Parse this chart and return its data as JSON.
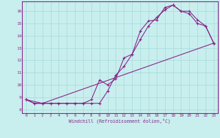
{
  "xlabel": "Windchill (Refroidissement éolien,°C)",
  "background_color": "#c8eeee",
  "grid_color": "#aadddd",
  "line_color": "#882288",
  "xlim": [
    -0.5,
    23.5
  ],
  "ylim": [
    7.7,
    16.8
  ],
  "xticks": [
    0,
    1,
    2,
    3,
    4,
    5,
    6,
    7,
    8,
    9,
    10,
    11,
    12,
    13,
    14,
    15,
    16,
    17,
    18,
    19,
    20,
    21,
    22,
    23
  ],
  "yticks": [
    8,
    9,
    10,
    11,
    12,
    13,
    14,
    15,
    16
  ],
  "line1_x": [
    0,
    1,
    2,
    3,
    4,
    5,
    6,
    7,
    8,
    9,
    10,
    11,
    12,
    13,
    14,
    15,
    16,
    17,
    18,
    19,
    20,
    21,
    22,
    23
  ],
  "line1_y": [
    8.8,
    8.5,
    8.5,
    8.5,
    8.5,
    8.5,
    8.5,
    8.5,
    8.8,
    10.4,
    10.0,
    10.5,
    12.2,
    12.5,
    14.4,
    15.2,
    15.3,
    16.3,
    16.5,
    16.0,
    16.0,
    15.3,
    14.8,
    13.4
  ],
  "line2_x": [
    0,
    1,
    2,
    3,
    4,
    5,
    6,
    7,
    8,
    9,
    10,
    11,
    12,
    13,
    14,
    15,
    16,
    17,
    18,
    19,
    20,
    21,
    22,
    23
  ],
  "line2_y": [
    8.8,
    8.5,
    8.5,
    8.5,
    8.5,
    8.5,
    8.5,
    8.5,
    8.5,
    8.5,
    9.5,
    10.8,
    11.5,
    12.5,
    13.7,
    14.8,
    15.5,
    16.1,
    16.5,
    16.0,
    15.8,
    15.0,
    14.8,
    13.4
  ],
  "line3_x": [
    0,
    2,
    23
  ],
  "line3_y": [
    8.8,
    8.5,
    13.4
  ]
}
